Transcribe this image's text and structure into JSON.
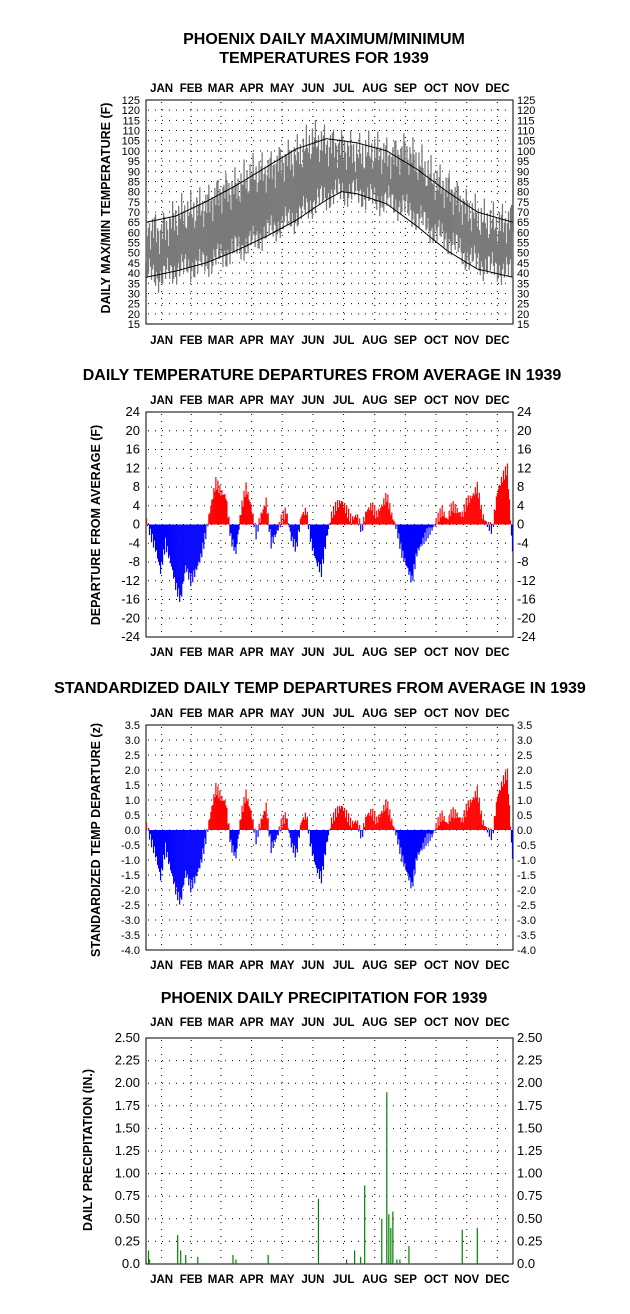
{
  "months": [
    "JAN",
    "FEB",
    "MAR",
    "APR",
    "MAY",
    "JUN",
    "JUL",
    "AUG",
    "SEP",
    "OCT",
    "NOV",
    "DEC"
  ],
  "chart_data": [
    {
      "type": "line",
      "title_line1": "PHOENIX DAILY MAXIMUM/MINIMUM",
      "title_line2": "TEMPERATURES FOR 1939",
      "ylabel": "DAILY MAX/MIN TEMPERATURE (F)",
      "ylim": [
        15,
        125
      ],
      "yticks": [
        15,
        20,
        25,
        30,
        35,
        40,
        45,
        50,
        55,
        60,
        65,
        70,
        75,
        80,
        85,
        90,
        95,
        100,
        105,
        110,
        115,
        120,
        125
      ],
      "grid": "dotted",
      "series": [],
      "daily_max_anchors": {
        "day": [
          1,
          15,
          32,
          45,
          60,
          75,
          91,
          105,
          121,
          135,
          152,
          166,
          182,
          196,
          213,
          227,
          244,
          258,
          274,
          288,
          305,
          319,
          335,
          350,
          365
        ],
        "value": [
          63,
          60,
          68,
          70,
          73,
          80,
          82,
          88,
          90,
          95,
          98,
          105,
          103,
          102,
          98,
          100,
          97,
          100,
          93,
          85,
          80,
          72,
          66,
          64,
          66
        ]
      },
      "daily_min_anchors": {
        "day": [
          1,
          15,
          32,
          45,
          60,
          75,
          91,
          105,
          121,
          135,
          152,
          166,
          182,
          196,
          213,
          227,
          244,
          258,
          274,
          288,
          305,
          319,
          335,
          350,
          365
        ],
        "value": [
          40,
          38,
          42,
          43,
          45,
          48,
          52,
          55,
          60,
          64,
          68,
          74,
          78,
          80,
          79,
          76,
          75,
          72,
          66,
          60,
          55,
          48,
          44,
          42,
          40
        ]
      },
      "normal_max_anchors": {
        "day": [
          1,
          30,
          60,
          90,
          120,
          150,
          180,
          195,
          210,
          240,
          270,
          300,
          330,
          365
        ],
        "value": [
          65,
          68,
          75,
          83,
          92,
          101,
          106,
          105,
          104,
          100,
          91,
          80,
          70,
          65
        ]
      },
      "normal_min_anchors": {
        "day": [
          1,
          30,
          60,
          90,
          120,
          150,
          180,
          195,
          210,
          240,
          270,
          300,
          330,
          365
        ],
        "value": [
          38,
          41,
          45,
          51,
          58,
          66,
          76,
          80,
          79,
          74,
          63,
          51,
          42,
          38
        ]
      }
    },
    {
      "type": "bar",
      "title": "DAILY TEMPERATURE DEPARTURES FROM AVERAGE IN 1939",
      "ylabel": "DEPARTURE FROM AVERAGE (F)",
      "ylim": [
        -24,
        24
      ],
      "yticks": [
        24,
        20,
        16,
        12,
        8,
        4,
        0,
        -4,
        -8,
        -12,
        -16,
        -20,
        -24
      ],
      "grid": "dotted",
      "positive_color": "#ff0000",
      "negative_color": "#0000ff",
      "departure_anchors": {
        "day": [
          1,
          5,
          10,
          15,
          20,
          25,
          30,
          35,
          40,
          45,
          50,
          55,
          60,
          65,
          70,
          75,
          80,
          85,
          90,
          95,
          100,
          105,
          110,
          115,
          120,
          125,
          130,
          135,
          140,
          145,
          150,
          155,
          160,
          165,
          170,
          175,
          180,
          185,
          190,
          195,
          200,
          205,
          210,
          215,
          220,
          225,
          230,
          235,
          240,
          245,
          250,
          255,
          260,
          265,
          270,
          275,
          280,
          285,
          290,
          295,
          300,
          305,
          310,
          315,
          320,
          325,
          330,
          335,
          340,
          345,
          350,
          355,
          360,
          365
        ],
        "value": [
          1,
          -2,
          -5,
          -10,
          -4,
          -8,
          -13,
          -16,
          -9,
          -12,
          -10,
          -7,
          -2,
          4,
          9,
          7,
          6,
          -3,
          -6,
          3,
          8,
          4,
          -2,
          2,
          5,
          -4,
          -2,
          1,
          3,
          -3,
          -5,
          2,
          3,
          -4,
          -8,
          -10,
          -3,
          2,
          4,
          5,
          3,
          1,
          2,
          -1,
          3,
          4,
          2,
          4,
          6,
          2,
          -1,
          -6,
          -9,
          -12,
          -6,
          -4,
          -2,
          -1,
          1,
          3,
          1,
          4,
          3,
          2,
          5,
          6,
          8,
          2,
          0,
          -1,
          7,
          10,
          12,
          -6
        ]
      }
    },
    {
      "type": "bar",
      "title": "STANDARDIZED DAILY TEMP DEPARTURES FROM AVERAGE IN 1939",
      "ylabel": "STANDARDIZED TEMP DEPARTURE (z)",
      "ylim": [
        -4.0,
        3.5
      ],
      "yticks": [
        "3.5",
        "3.0",
        "2.5",
        "2.0",
        "1.5",
        "1.0",
        "0.5",
        "0.0",
        "-0.5",
        "-1.0",
        "-1.5",
        "-2.0",
        "-2.5",
        "-3.0",
        "-3.5",
        "-4.0"
      ],
      "grid": "dotted",
      "positive_color": "#ff0000",
      "negative_color": "#0000ff",
      "departure_anchors": {
        "day": [
          1,
          5,
          10,
          15,
          20,
          25,
          30,
          35,
          40,
          45,
          50,
          55,
          60,
          65,
          70,
          75,
          80,
          85,
          90,
          95,
          100,
          105,
          110,
          115,
          120,
          125,
          130,
          135,
          140,
          145,
          150,
          155,
          160,
          165,
          170,
          175,
          180,
          185,
          190,
          195,
          200,
          205,
          210,
          215,
          220,
          225,
          230,
          235,
          240,
          245,
          250,
          255,
          260,
          265,
          270,
          275,
          280,
          285,
          290,
          295,
          300,
          305,
          310,
          315,
          320,
          325,
          330,
          335,
          340,
          345,
          350,
          355,
          360,
          365
        ],
        "value": [
          0.2,
          -0.3,
          -0.8,
          -1.6,
          -0.6,
          -1.3,
          -2.0,
          -2.4,
          -1.4,
          -1.9,
          -1.6,
          -1.1,
          -0.3,
          0.6,
          1.4,
          1.1,
          0.9,
          -0.5,
          -0.9,
          0.5,
          1.2,
          0.6,
          -0.3,
          0.3,
          0.8,
          -0.6,
          -0.3,
          0.2,
          0.5,
          -0.5,
          -0.8,
          0.3,
          0.5,
          -0.6,
          -1.3,
          -1.6,
          -0.5,
          0.3,
          0.6,
          0.8,
          0.5,
          0.2,
          0.3,
          -0.2,
          0.5,
          0.6,
          0.3,
          0.6,
          0.9,
          0.3,
          -0.2,
          -0.9,
          -1.4,
          -1.9,
          -0.9,
          -0.6,
          -0.3,
          -0.2,
          0.2,
          0.5,
          0.2,
          0.6,
          0.5,
          0.3,
          0.8,
          1.0,
          1.3,
          0.3,
          0.0,
          -0.2,
          1.1,
          1.6,
          1.9,
          -1.0
        ]
      }
    },
    {
      "type": "bar",
      "title": "PHOENIX DAILY PRECIPITATION FOR 1939",
      "ylabel": "DAILY PRECIPITATION (IN.)",
      "ylim": [
        0.0,
        2.5
      ],
      "yticks": [
        "2.50",
        "2.25",
        "2.00",
        "1.75",
        "1.50",
        "1.25",
        "1.00",
        "0.75",
        "0.50",
        "0.25",
        "0.0"
      ],
      "grid": "dotted",
      "bar_color": "#008000",
      "day": [
        3,
        4,
        32,
        35,
        40,
        52,
        87,
        90,
        122,
        172,
        200,
        208,
        214,
        218,
        235,
        240,
        242,
        244,
        246,
        250,
        253,
        262,
        315,
        330
      ],
      "values": [
        0.15,
        0.05,
        0.32,
        0.15,
        0.1,
        0.08,
        0.1,
        0.05,
        0.1,
        0.72,
        0.05,
        0.15,
        0.08,
        0.87,
        0.5,
        1.9,
        0.55,
        0.4,
        0.58,
        0.05,
        0.05,
        0.2,
        0.38,
        0.4
      ]
    }
  ]
}
